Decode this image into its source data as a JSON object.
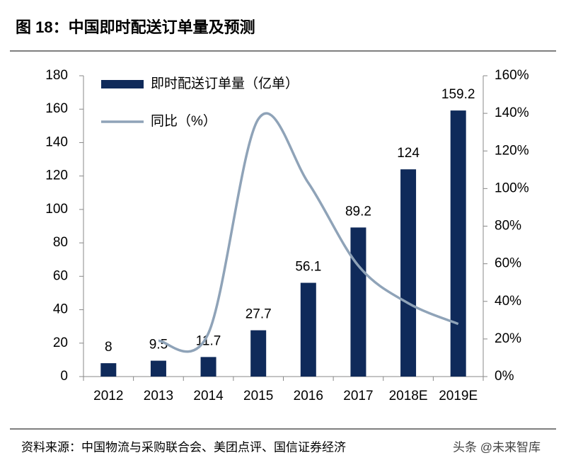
{
  "header": {
    "title": "图 18：中国即时配送订单量及预测"
  },
  "chart_data": {
    "type": "bar",
    "categories": [
      "2012",
      "2013",
      "2014",
      "2015",
      "2016",
      "2017",
      "2018E",
      "2019E"
    ],
    "series": [
      {
        "name": "即时配送订单量（亿单）",
        "type": "bar",
        "color": "#0f2a5a",
        "values": [
          8,
          9.5,
          11.7,
          27.7,
          56.1,
          89.2,
          124,
          159.2
        ]
      },
      {
        "name": "同比（%）",
        "type": "line",
        "axis": "y2",
        "color": "#8fa3b8",
        "values": [
          null,
          19,
          23,
          137,
          103,
          59,
          39,
          28
        ]
      }
    ],
    "ylim": [
      0,
      180
    ],
    "yticks": [
      0,
      20,
      40,
      60,
      80,
      100,
      120,
      140,
      160,
      180
    ],
    "y2lim": [
      0,
      160
    ],
    "y2ticks": [
      {
        "value": 0,
        "label": "0%"
      },
      {
        "value": 20,
        "label": "20%"
      },
      {
        "value": 40,
        "label": "40%"
      },
      {
        "value": 60,
        "label": "60%"
      },
      {
        "value": 80,
        "label": "80%"
      },
      {
        "value": 100,
        "label": "100%"
      },
      {
        "value": 120,
        "label": "120%"
      },
      {
        "value": 140,
        "label": "140%"
      },
      {
        "value": 160,
        "label": "160%"
      }
    ],
    "legend": "top-left"
  },
  "footer": {
    "source": "资料来源：中国物流与采购联合会、美团点评、国信证券经济",
    "watermark": "头条 @未来智库"
  }
}
